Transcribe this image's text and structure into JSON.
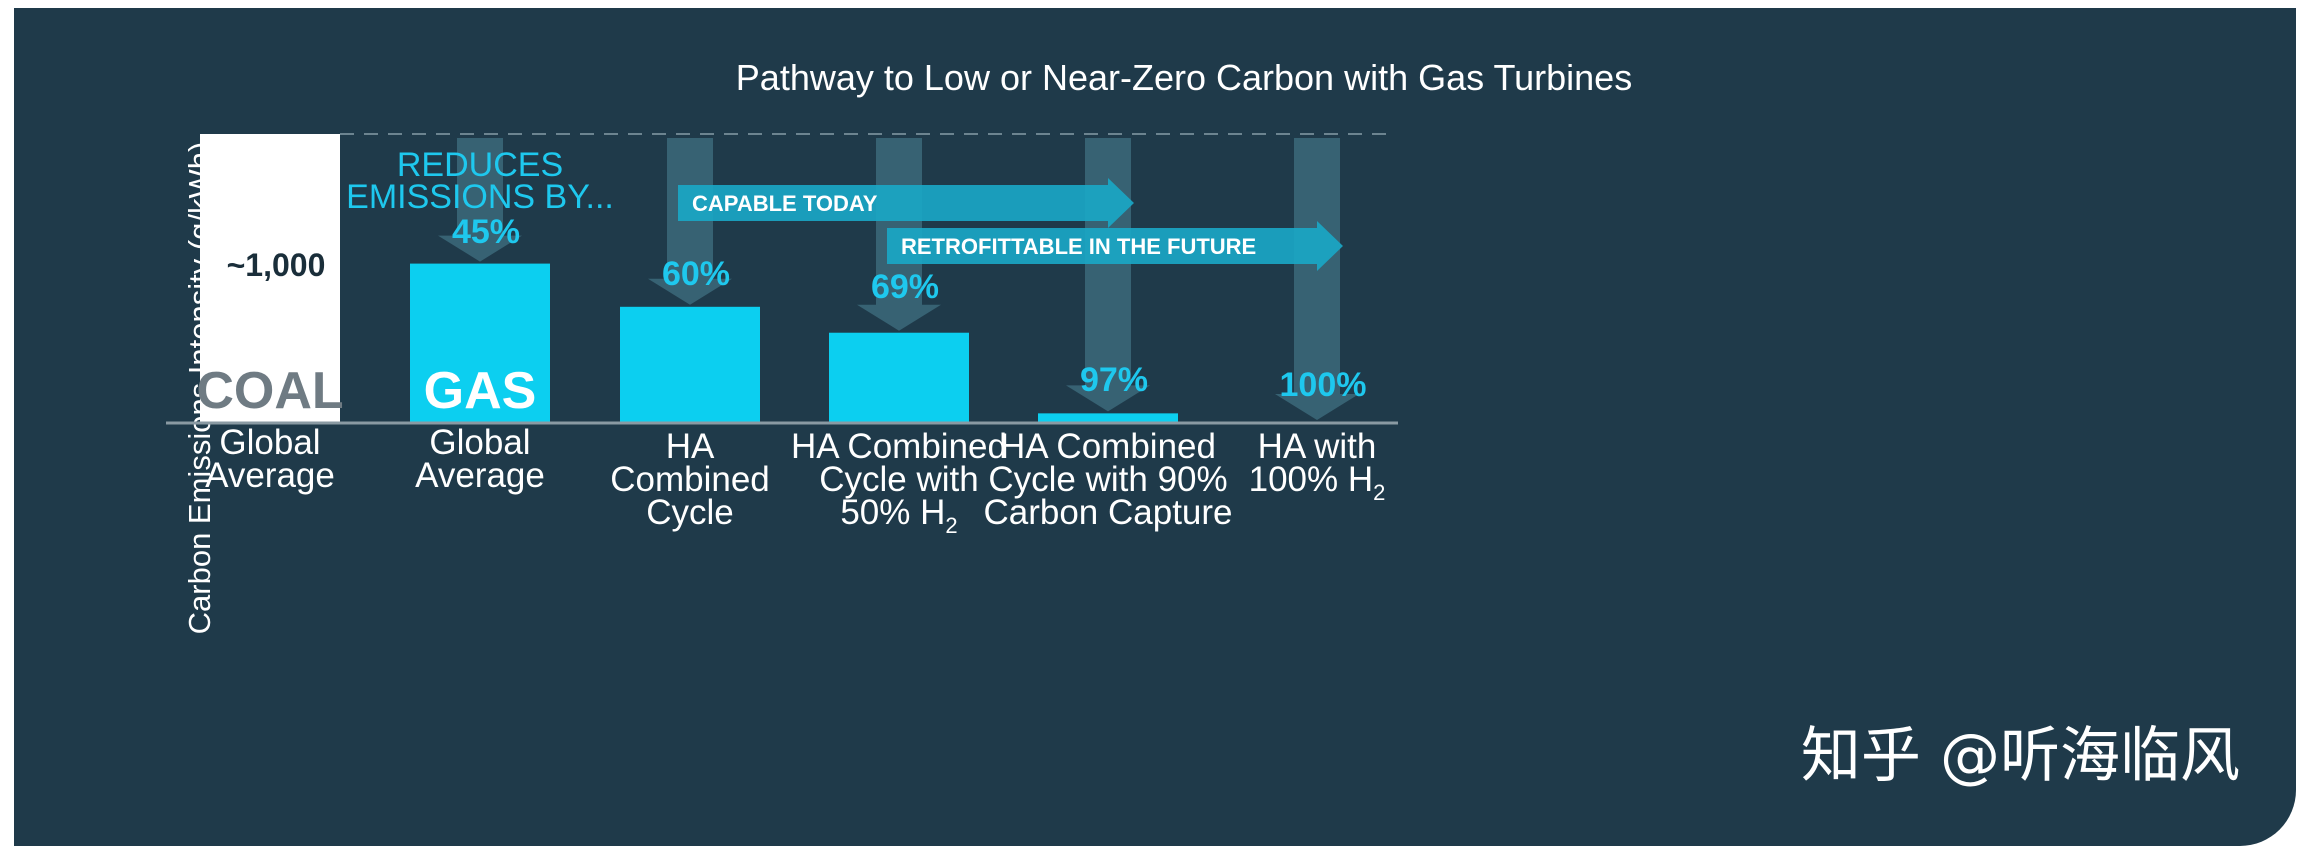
{
  "colors": {
    "background": "#1f3a4a",
    "coal_bar": "#ffffff",
    "gas_bar": "#0ccff0",
    "accent_text": "#1ec8ee",
    "coal_label": "#6f7b83",
    "arrow": "#1aa6c4",
    "down_arrow": "#3c6a7a"
  },
  "watermark": "知乎 @听海临风",
  "chart_data": {
    "type": "bar",
    "title": "Pathway to Low or Near-Zero Carbon with Gas Turbines",
    "ylabel": "Carbon Emissions Intensity (g/kWh)",
    "xlabel": "",
    "ylim": [
      0,
      1000
    ],
    "grid": false,
    "reference_line": 1000,
    "categories": [
      [
        "Global",
        "Average"
      ],
      [
        "Global",
        "Average"
      ],
      [
        "HA",
        "Combined",
        "Cycle"
      ],
      [
        "HA Combined",
        "Cycle with",
        "50% H₂"
      ],
      [
        "HA Combined",
        "Cycle with 90%",
        "Carbon Capture"
      ],
      [
        "HA with",
        "100% H₂"
      ]
    ],
    "values": [
      1000,
      550,
      400,
      310,
      30,
      0
    ],
    "bar_labels": [
      "COAL",
      "GAS",
      "",
      "",
      "",
      ""
    ],
    "value_label": "~1,000",
    "reduction_header": [
      "REDUCES",
      "EMISSIONS BY..."
    ],
    "reductions": [
      "",
      "45%",
      "60%",
      "69%",
      "97%",
      "100%"
    ],
    "annotations": [
      {
        "text": "CAPABLE TODAY",
        "from_category": 2,
        "to_category": 4
      },
      {
        "text": "RETROFITTABLE IN THE FUTURE",
        "from_category": 3,
        "to_category": 5
      }
    ]
  }
}
